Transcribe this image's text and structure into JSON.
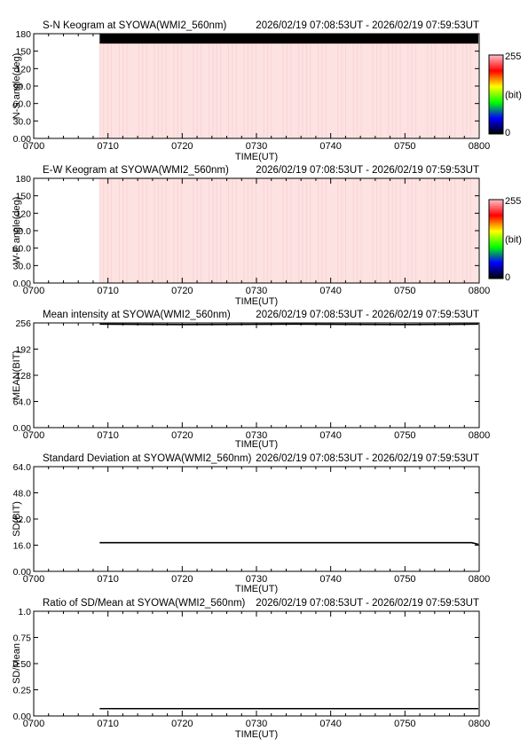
{
  "header_range": "2026/02/19 07:08:53UT - 2026/02/19 07:59:53UT",
  "colors": {
    "keogram_fill": "#fde2e2",
    "saturation_band": "#000000",
    "line": "#000000",
    "colorbar_stops": [
      "#000000",
      "#0000ff",
      "#00ff00",
      "#ffff00",
      "#ff0000",
      "#ffc0cb"
    ]
  },
  "x_axis": {
    "label": "TIME(UT)",
    "ticks": [
      "0700",
      "0710",
      "0720",
      "0730",
      "0740",
      "0750",
      "0800"
    ],
    "range_minutes": [
      0,
      60
    ]
  },
  "chart_data": [
    {
      "type": "heatmap",
      "title": "S-N Keogram at SYOWA(WMI2_560nm)",
      "range_text": "2026/02/19 07:08:53UT - 2026/02/19 07:59:53UT",
      "xlabel": "TIME(UT)",
      "ylabel": "N-S angle(deg)",
      "yticks": [
        "0.00",
        "30.0",
        "60.0",
        "90.0",
        "120",
        "150",
        "180"
      ],
      "ylim": [
        0,
        180
      ],
      "data_start": "07:08:53",
      "data_end": "07:59:53",
      "saturated_band_deg": [
        163,
        180
      ],
      "colorbar": {
        "min": "0",
        "max": "255",
        "unit": "(bit)"
      }
    },
    {
      "type": "heatmap",
      "title": "E-W Keogram at SYOWA(WMI2_560nm)",
      "range_text": "2026/02/19 07:08:53UT - 2026/02/19 07:59:53UT",
      "xlabel": "TIME(UT)",
      "ylabel": "W-E angle(deg)",
      "yticks": [
        "0.00",
        "30.0",
        "60.0",
        "90.0",
        "120",
        "150",
        "180"
      ],
      "ylim": [
        0,
        180
      ],
      "data_start": "07:08:53",
      "data_end": "07:59:53",
      "colorbar": {
        "min": "0",
        "max": "255",
        "unit": "(bit)"
      }
    },
    {
      "type": "line",
      "title": "Mean intensity at SYOWA(WMI2_560nm)",
      "range_text": "2026/02/19 07:08:53UT - 2026/02/19 07:59:53UT",
      "xlabel": "TIME(UT)",
      "ylabel": "MEAN(BIT)",
      "yticks": [
        "0.00",
        "64.0",
        "128",
        "192",
        "256"
      ],
      "ylim": [
        0,
        256
      ],
      "series": [
        {
          "x": [
            "07:08:53",
            "07:20",
            "07:35",
            "07:50",
            "07:59:53"
          ],
          "y": [
            253,
            252,
            253,
            252,
            253
          ]
        }
      ]
    },
    {
      "type": "line",
      "title": "Standard Deviation at SYOWA(WMI2_560nm)",
      "range_text": "2026/02/19 07:08:53UT - 2026/02/19 07:59:53UT",
      "xlabel": "TIME(UT)",
      "ylabel": "SD(BIT)",
      "yticks": [
        "0.00",
        "16.0",
        "32.0",
        "48.0",
        "64.0"
      ],
      "ylim": [
        0,
        64
      ],
      "series": [
        {
          "x": [
            "07:08:53",
            "07:30",
            "07:59",
            "07:59:53"
          ],
          "y": [
            17.5,
            17.5,
            17.5,
            16.5
          ]
        }
      ]
    },
    {
      "type": "line",
      "title": "Ratio of SD/Mean at SYOWA(WMI2_560nm)",
      "range_text": "2026/02/19 07:08:53UT - 2026/02/19 07:59:53UT",
      "xlabel": "TIME(UT)",
      "ylabel": "SD/Mean",
      "yticks": [
        "0.00",
        "0.25",
        "0.50",
        "0.75",
        "1.0"
      ],
      "ylim": [
        0,
        1
      ],
      "series": [
        {
          "x": [
            "07:08:53",
            "07:59:53"
          ],
          "y": [
            0.07,
            0.07
          ]
        }
      ]
    }
  ]
}
